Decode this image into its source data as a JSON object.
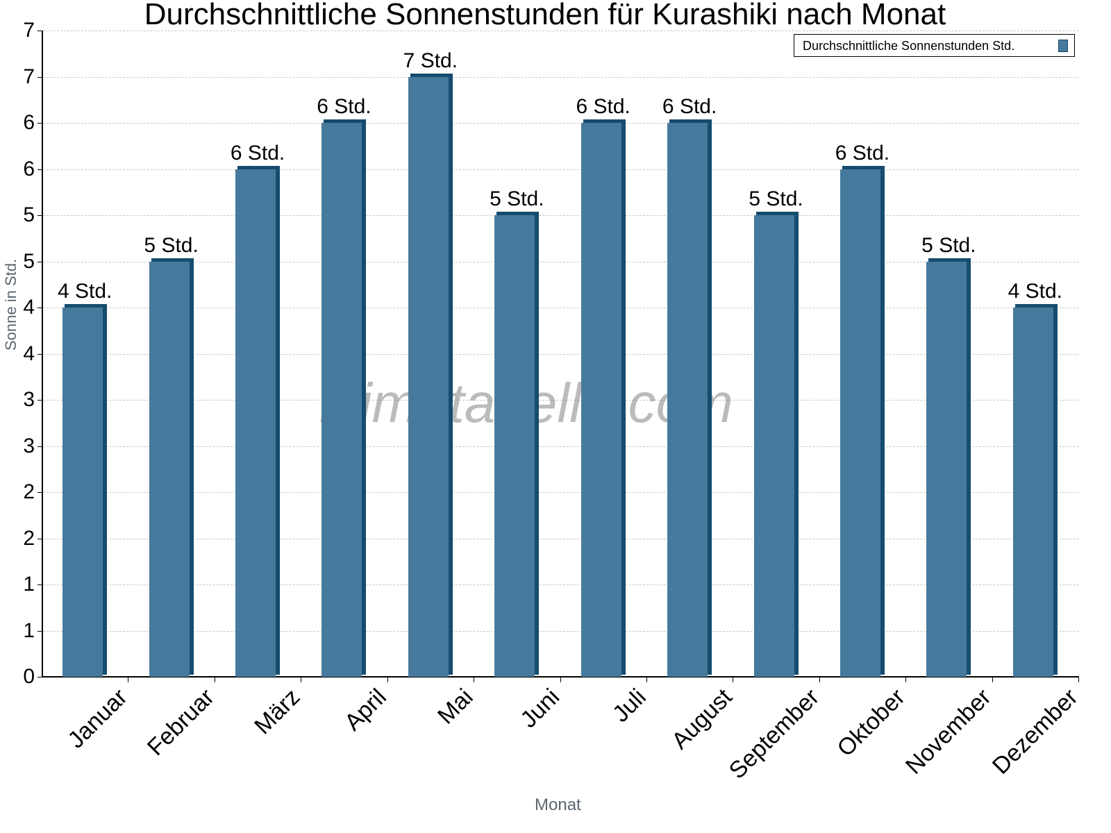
{
  "chart_data": {
    "type": "bar",
    "title": "Durchschnittliche Sonnenstunden für Kurashiki nach Monat",
    "xlabel": "Monat",
    "ylabel": "Sonne in Std.",
    "ylim": [
      0,
      7
    ],
    "grid": true,
    "legend_position": "top-right",
    "categories": [
      "Januar",
      "Februar",
      "März",
      "April",
      "Mai",
      "Juni",
      "Juli",
      "August",
      "September",
      "Oktober",
      "November",
      "Dezember"
    ],
    "series": [
      {
        "name": "Durchschnittliche Sonnenstunden Std.",
        "color": "#467a9c",
        "values": [
          4.0,
          4.5,
          5.5,
          6.0,
          6.5,
          5.0,
          6.0,
          6.0,
          5.0,
          5.5,
          4.5,
          4.0
        ]
      }
    ],
    "data_labels": [
      "4 Std.",
      "5 Std.",
      "6 Std.",
      "6 Std.",
      "7 Std.",
      "5 Std.",
      "6 Std.",
      "6 Std.",
      "5 Std.",
      "6 Std.",
      "5 Std.",
      "4 Std."
    ],
    "y_tick_labels": [
      "0",
      "1",
      "1",
      "2",
      "2",
      "3",
      "3",
      "4",
      "4",
      "5",
      "5",
      "6",
      "6",
      "7",
      "7"
    ],
    "watermark": "klimatabelle.com"
  }
}
